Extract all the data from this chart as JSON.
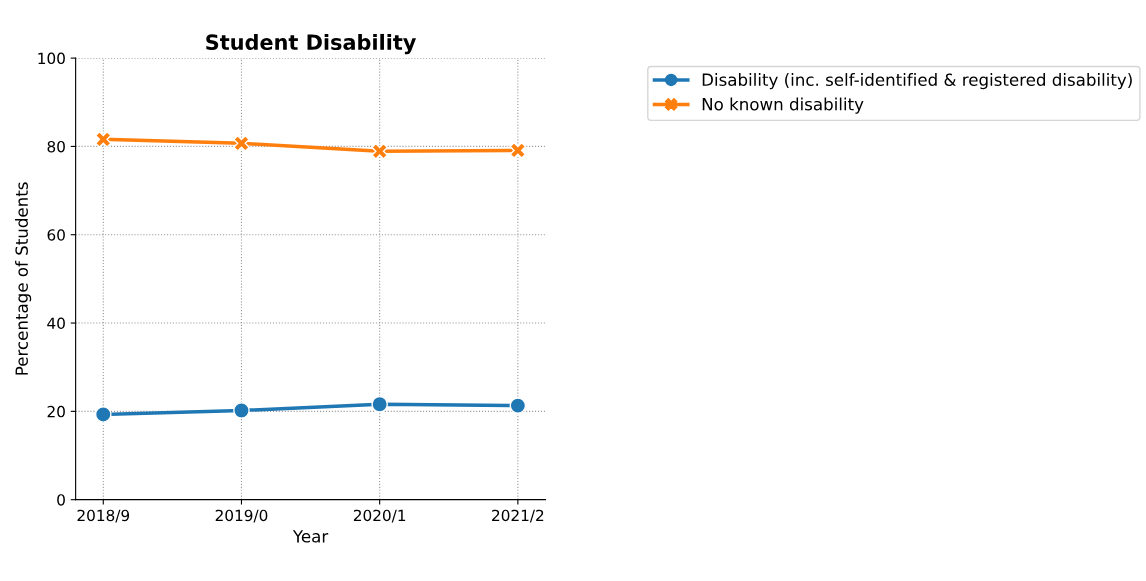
{
  "chart_data": {
    "type": "line",
    "title": "Student Disability",
    "xlabel": "Year",
    "ylabel": "Percentage of Students",
    "categories": [
      "2018/9",
      "2019/0",
      "2020/1",
      "2021/2"
    ],
    "series": [
      {
        "name": "Disability (inc. self-identified & registered disability)",
        "color": "#1f77b4",
        "marker": "circle",
        "values": [
          19.3,
          20.2,
          21.6,
          21.3
        ]
      },
      {
        "name": "No known disability",
        "color": "#ff7f0e",
        "marker": "cross",
        "values": [
          81.6,
          80.7,
          78.9,
          79.1
        ]
      }
    ],
    "ylim": [
      0,
      100
    ],
    "yticks": [
      0,
      20,
      40,
      60,
      80,
      100
    ],
    "grid": true,
    "legend": "top right",
    "line_style": "solid"
  }
}
